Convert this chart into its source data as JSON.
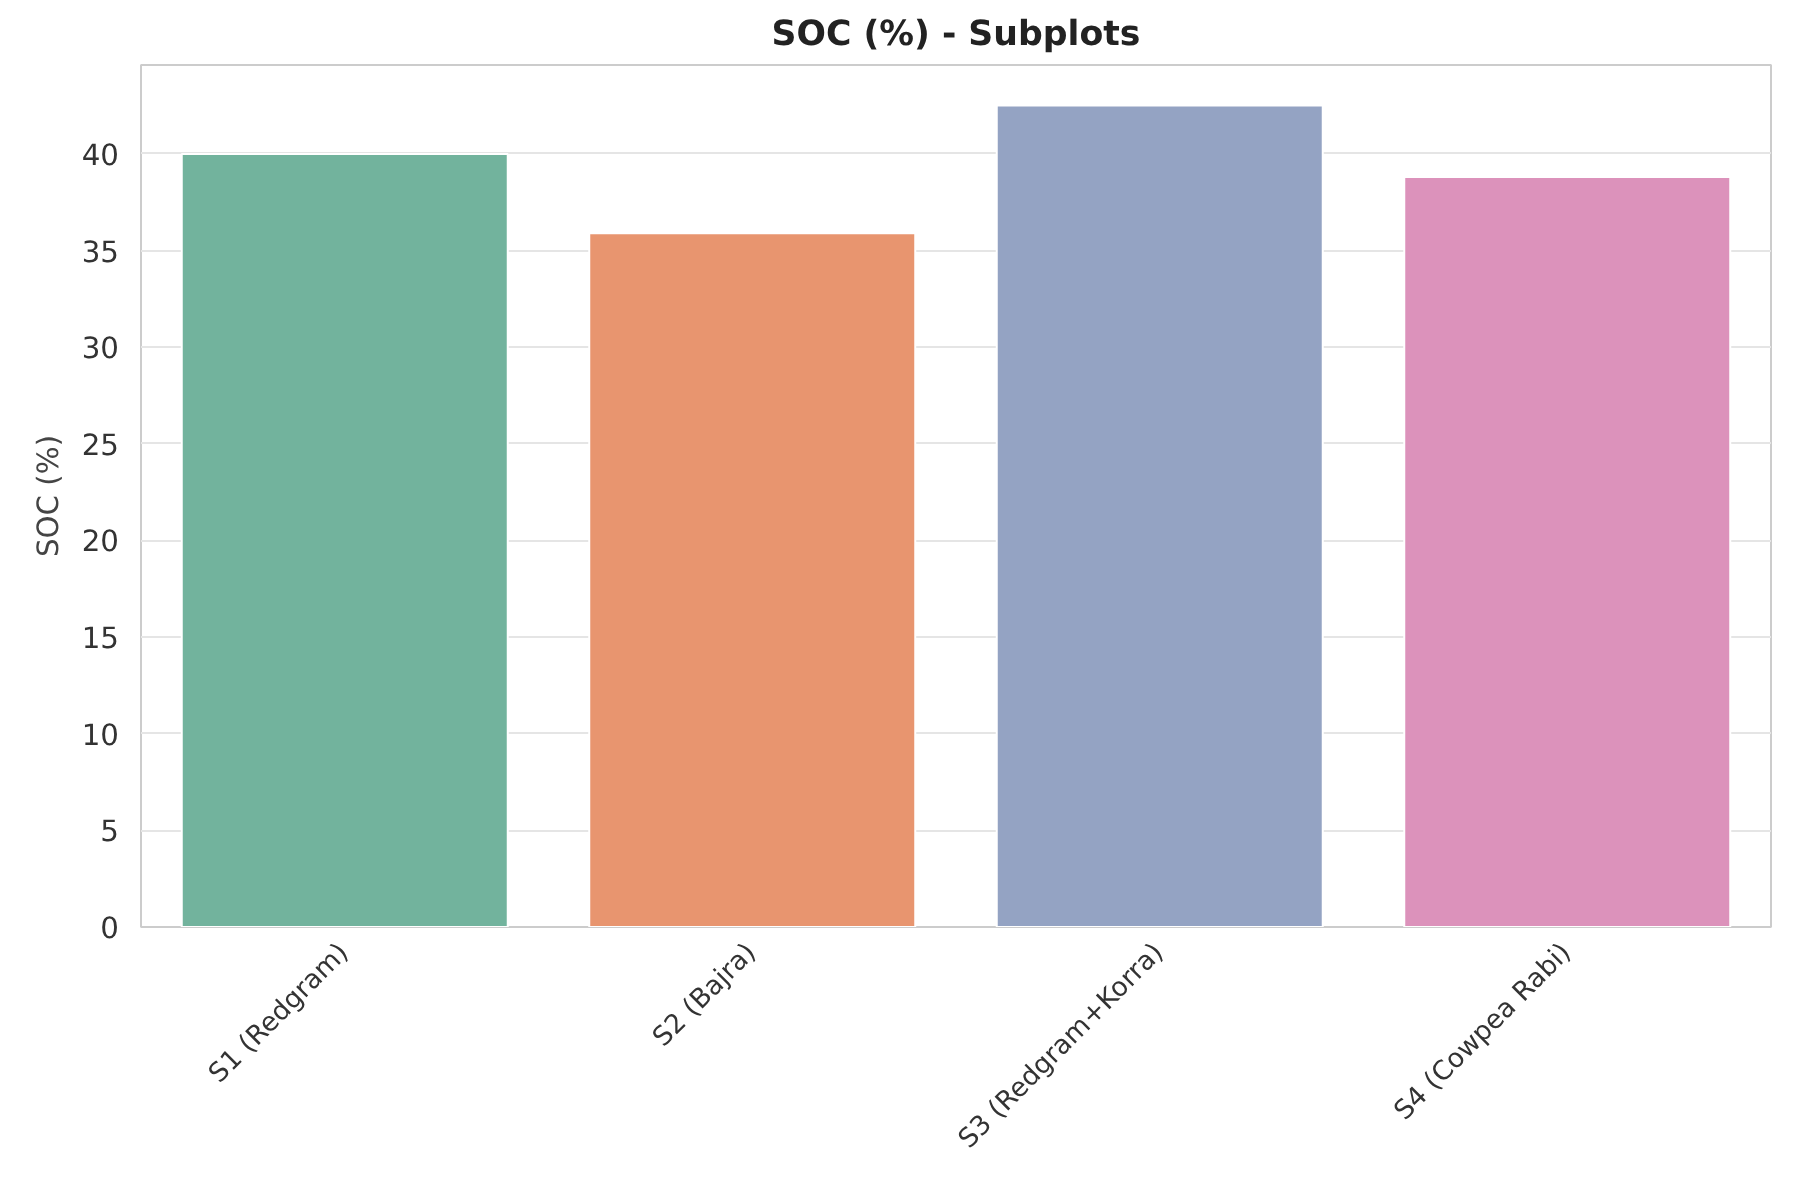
{
  "chart_data": {
    "type": "bar",
    "title": "SOC (%) - Subplots",
    "ylabel": "SOC (%)",
    "categories": [
      "S1 (Redgram)",
      "S2 (Bajra)",
      "S3 (Redgram+Korra)",
      "S4 (Cowpea Rabi)"
    ],
    "values": [
      40.0,
      35.9,
      42.5,
      38.8
    ],
    "colors": [
      "#72b39d",
      "#e8956f",
      "#94a3c3",
      "#dc92bb"
    ],
    "ylim": [
      0,
      44.6
    ],
    "yticks": [
      0,
      5,
      10,
      15,
      20,
      25,
      30,
      35,
      40
    ],
    "grid": "y"
  }
}
